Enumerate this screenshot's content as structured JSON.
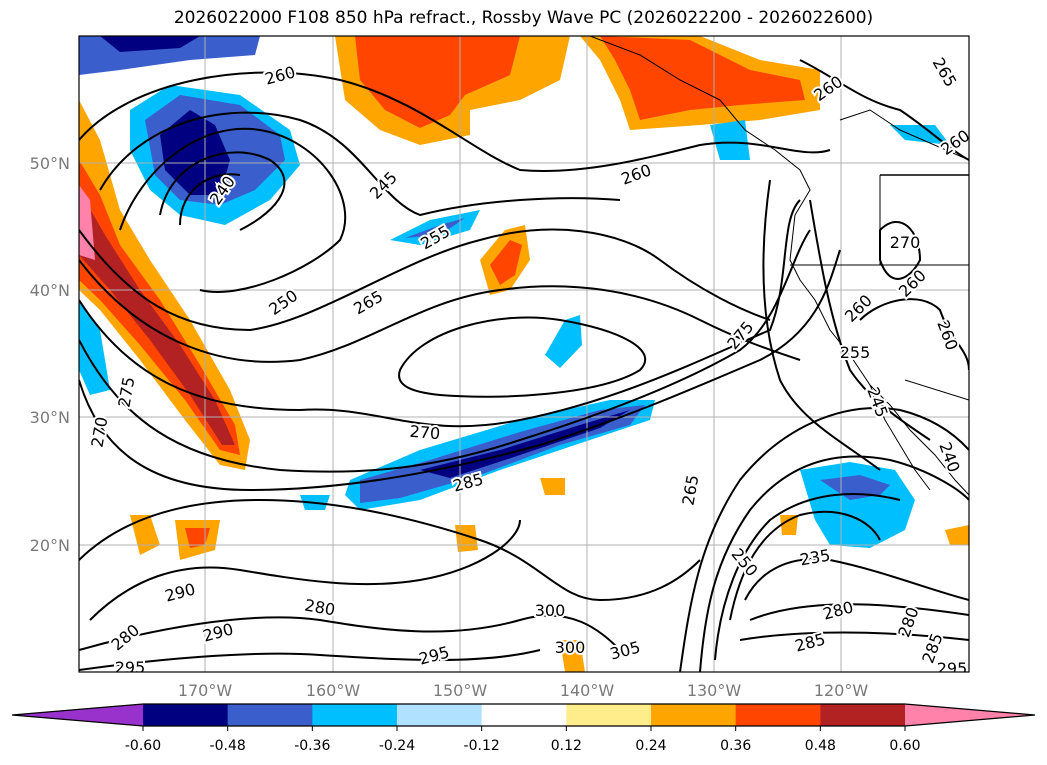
{
  "title": "2026022000 F108 850 hPa refract., Rossby Wave PC (2026022200 - 2026022600)",
  "map": {
    "lon_range": [
      "180°W",
      "110°W"
    ],
    "lat_range": [
      "10°N",
      "60°N"
    ],
    "lat_labels": [
      "50°N",
      "40°N",
      "30°N",
      "20°N"
    ],
    "lon_labels": [
      "170°W",
      "160°W",
      "150°W",
      "140°W",
      "130°W",
      "120°W"
    ],
    "contour_labels": [
      "260",
      "240",
      "245",
      "255",
      "260",
      "250",
      "265",
      "270",
      "275",
      "285",
      "270",
      "260",
      "260",
      "255",
      "260",
      "245",
      "240",
      "260",
      "265",
      "260",
      "265",
      "250",
      "235",
      "280",
      "285",
      "290",
      "280",
      "290",
      "280",
      "295",
      "300",
      "300",
      "305",
      "295",
      "275",
      "270",
      "280",
      "285",
      "295"
    ]
  },
  "colorbar": {
    "ticks": [
      "-0.60",
      "-0.48",
      "-0.36",
      "-0.24",
      "-0.12",
      "0.12",
      "0.24",
      "0.36",
      "0.48",
      "0.60"
    ],
    "colors": [
      "#9932CC",
      "#000080",
      "#3A5FCD",
      "#00BFFF",
      "#B0E2FF",
      "#FFFFFF",
      "#FFEC8B",
      "#FFA500",
      "#FF4500",
      "#B22222",
      "#FF82AB"
    ]
  }
}
